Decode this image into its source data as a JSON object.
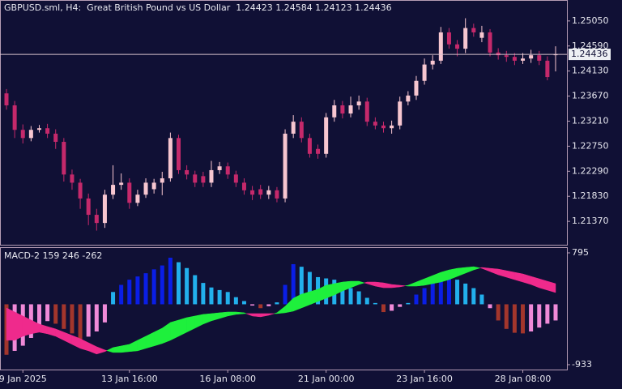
{
  "chart_data": [
    {
      "type": "candlestick",
      "title": "GBPUSD.sml, H4:  Great British Pound vs US Dollar  1.24423 1.24584 1.24123 1.24436",
      "open": [
        1.2372,
        1.235,
        1.2305,
        1.229,
        1.2305,
        1.2308,
        1.2298,
        1.2283,
        1.2223,
        1.2208,
        1.2179,
        1.2149,
        1.2134,
        1.2186,
        1.2204,
        1.2208,
        1.2171,
        1.2186,
        1.2196,
        1.2208,
        1.2216,
        1.229,
        1.2231,
        1.2223,
        1.222,
        1.2208,
        1.2231,
        1.2238,
        1.2223,
        1.2208,
        1.2194,
        1.2196,
        1.2186,
        1.2194,
        1.2179,
        1.2298,
        1.232,
        1.229,
        1.227,
        1.2261,
        1.2328,
        1.235,
        1.2335,
        1.235,
        1.2357,
        1.232,
        1.2313,
        1.2308,
        1.2313,
        1.2357,
        1.2368,
        1.2395,
        1.2425,
        1.2432,
        1.2484,
        1.2462,
        1.2454,
        1.2492,
        1.2474,
        1.2484,
        1.2447,
        1.2442,
        1.2439,
        1.2432,
        1.2436,
        1.2442,
        1.2432,
        1.24423
      ],
      "high": [
        1.238,
        1.2358,
        1.2315,
        1.2312,
        1.2314,
        1.2316,
        1.2306,
        1.229,
        1.2232,
        1.2215,
        1.2188,
        1.216,
        1.2195,
        1.224,
        1.2225,
        1.2216,
        1.2195,
        1.2216,
        1.2215,
        1.2228,
        1.23,
        1.2296,
        1.224,
        1.223,
        1.2228,
        1.2248,
        1.2246,
        1.2245,
        1.223,
        1.2216,
        1.2202,
        1.2204,
        1.2202,
        1.22,
        1.2306,
        1.2332,
        1.2328,
        1.2298,
        1.2278,
        1.2336,
        1.236,
        1.2358,
        1.2366,
        1.2368,
        1.2364,
        1.2328,
        1.232,
        1.2322,
        1.2366,
        1.2376,
        1.2404,
        1.2436,
        1.2442,
        1.2494,
        1.2492,
        1.247,
        1.251,
        1.25,
        1.2496,
        1.249,
        1.2455,
        1.245,
        1.2446,
        1.2446,
        1.2452,
        1.245,
        1.244,
        1.24584
      ],
      "low": [
        1.2342,
        1.229,
        1.228,
        1.2284,
        1.23,
        1.229,
        1.227,
        1.221,
        1.2195,
        1.216,
        1.213,
        1.212,
        1.2125,
        1.2178,
        1.2195,
        1.216,
        1.2165,
        1.218,
        1.2188,
        1.2185,
        1.221,
        1.2224,
        1.2214,
        1.22,
        1.22,
        1.22,
        1.2224,
        1.2215,
        1.22,
        1.2186,
        1.2176,
        1.2178,
        1.2178,
        1.2172,
        1.2172,
        1.229,
        1.2282,
        1.2254,
        1.2252,
        1.2254,
        1.232,
        1.2326,
        1.2328,
        1.2342,
        1.2312,
        1.2306,
        1.23,
        1.2298,
        1.2306,
        1.235,
        1.236,
        1.2388,
        1.2416,
        1.2426,
        1.2454,
        1.244,
        1.2446,
        1.2476,
        1.2466,
        1.244,
        1.2434,
        1.243,
        1.2424,
        1.2426,
        1.2428,
        1.2424,
        1.2396,
        1.24123
      ],
      "close": [
        1.235,
        1.2305,
        1.229,
        1.2305,
        1.2308,
        1.2298,
        1.2283,
        1.2223,
        1.2208,
        1.2179,
        1.2149,
        1.2134,
        1.2186,
        1.2204,
        1.2208,
        1.2171,
        1.2186,
        1.2208,
        1.2208,
        1.2216,
        1.229,
        1.2231,
        1.2223,
        1.2208,
        1.2208,
        1.2231,
        1.2238,
        1.2223,
        1.2208,
        1.2194,
        1.2186,
        1.2186,
        1.2194,
        1.2179,
        1.2298,
        1.232,
        1.229,
        1.2261,
        1.2261,
        1.2328,
        1.235,
        1.2335,
        1.235,
        1.2357,
        1.232,
        1.2313,
        1.2308,
        1.2313,
        1.2357,
        1.2368,
        1.2395,
        1.2425,
        1.2432,
        1.2484,
        1.2462,
        1.2454,
        1.2492,
        1.2484,
        1.2484,
        1.2447,
        1.2442,
        1.2439,
        1.2432,
        1.2436,
        1.2442,
        1.2432,
        1.2402,
        1.24436
      ],
      "colors": {
        "bull": "#f7c6d0",
        "bear": "#c5296b",
        "price_line": "#d9c3cf"
      },
      "last_price": 1.24436,
      "ylim": [
        1.2097,
        1.2539
      ],
      "yticks": [
        {
          "value": 1.2505,
          "label": "1.25050"
        },
        {
          "value": 1.2459,
          "label": "1.24590"
        },
        {
          "value": 1.2413,
          "label": "1.24130"
        },
        {
          "value": 1.2367,
          "label": "1.23670"
        },
        {
          "value": 1.2321,
          "label": "1.23210"
        },
        {
          "value": 1.2275,
          "label": "1.22750"
        },
        {
          "value": 1.2229,
          "label": "1.22290"
        },
        {
          "value": 1.2183,
          "label": "1.21830"
        },
        {
          "value": 1.2137,
          "label": "1.21370"
        }
      ]
    },
    {
      "type": "macd",
      "title": "MACD-2 159 246 -262",
      "categories": [
        null,
        null,
        "9 Jan 2025",
        null,
        null,
        null,
        null,
        null,
        null,
        null,
        null,
        null,
        null,
        null,
        null,
        "13 Jan 16:00",
        null,
        null,
        null,
        null,
        null,
        null,
        null,
        null,
        null,
        null,
        null,
        "16 Jan 08:00",
        null,
        null,
        null,
        null,
        null,
        null,
        null,
        null,
        null,
        null,
        null,
        "21 Jan 00:00",
        null,
        null,
        null,
        null,
        null,
        null,
        null,
        null,
        null,
        null,
        null,
        "23 Jan 16:00",
        null,
        null,
        null,
        null,
        null,
        null,
        null,
        null,
        null,
        null,
        null,
        "28 Jan 08:00",
        null,
        null,
        null,
        null
      ],
      "histogram": [
        -780,
        -720,
        -640,
        -520,
        -400,
        -260,
        -300,
        -380,
        -450,
        -540,
        -500,
        -420,
        -280,
        190,
        300,
        380,
        430,
        480,
        540,
        600,
        720,
        650,
        560,
        450,
        330,
        260,
        220,
        190,
        110,
        50,
        -20,
        -60,
        -30,
        30,
        300,
        620,
        580,
        500,
        420,
        400,
        380,
        320,
        250,
        200,
        100,
        20,
        -120,
        -100,
        -40,
        20,
        150,
        250,
        330,
        420,
        460,
        380,
        320,
        250,
        150,
        -60,
        -250,
        -380,
        -440,
        -450,
        -420,
        -360,
        -300,
        -250
      ],
      "main": [
        -556,
        -556,
        -494,
        -456,
        -431,
        -456,
        -494,
        -556,
        -619,
        -681,
        -719,
        -769,
        -731,
        -669,
        -644,
        -619,
        -556,
        -494,
        -431,
        -369,
        -281,
        -244,
        -206,
        -181,
        -156,
        -144,
        -131,
        -119,
        -119,
        -131,
        -181,
        -194,
        -169,
        -131,
        -31,
        94,
        156,
        194,
        231,
        294,
        319,
        344,
        356,
        356,
        319,
        281,
        256,
        256,
        269,
        294,
        344,
        394,
        444,
        494,
        531,
        556,
        569,
        581,
        556,
        506,
        456,
        419,
        381,
        344,
        306,
        256,
        219,
        181
      ],
      "signal": [
        -56,
        -119,
        -181,
        -244,
        -306,
        -344,
        -381,
        -431,
        -481,
        -531,
        -594,
        -656,
        -706,
        -744,
        -744,
        -731,
        -719,
        -681,
        -644,
        -606,
        -556,
        -494,
        -431,
        -369,
        -306,
        -256,
        -219,
        -181,
        -156,
        -144,
        -144,
        -144,
        -144,
        -144,
        -131,
        -106,
        -56,
        -6,
        44,
        94,
        144,
        206,
        256,
        306,
        344,
        344,
        331,
        306,
        294,
        281,
        281,
        294,
        319,
        344,
        381,
        431,
        481,
        531,
        569,
        556,
        544,
        519,
        494,
        469,
        431,
        394,
        356,
        319
      ],
      "colors": {
        "positive_rising": "#0a1ee6",
        "positive_falling": "#22b0ec",
        "negative_falling": "#a3362c",
        "negative_rising": "#f08ad8",
        "band_up": "#1ef03c",
        "band_down": "#ef2a8c"
      },
      "ylim": [
        -996,
        870
      ],
      "yticks": [
        -933,
        795
      ]
    }
  ]
}
